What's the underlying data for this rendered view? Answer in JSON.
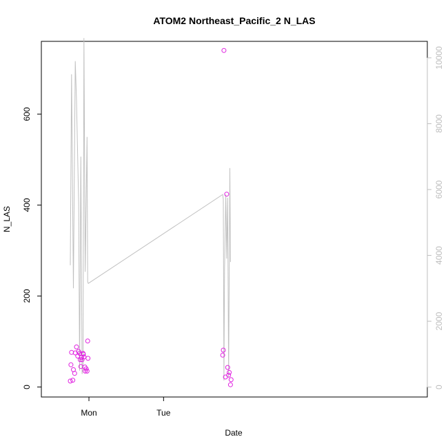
{
  "chart_data": {
    "type": "scatter",
    "title": "ATOM2 Northeast_Pacific_2 N_LAS",
    "xlabel": "Date",
    "ylabel": "N_LAS",
    "xlim_hours": [
      -15.3,
      108.8
    ],
    "ylim_left": [
      -22,
      760
    ],
    "ylim_right": [
      -300,
      10500
    ],
    "x_ticks": [
      {
        "label": "Mon",
        "hour": 0
      },
      {
        "label": "Tue",
        "hour": 24
      }
    ],
    "left_ticks": [
      0,
      200,
      400,
      600
    ],
    "right_ticks": [
      0,
      2000,
      4000,
      6000,
      8000,
      10000
    ],
    "colors": {
      "points": "#e020e0",
      "line": "#c0c0c0",
      "right_axis": "#bdbdbd"
    },
    "points": [
      {
        "x": -6.0,
        "y": 13
      },
      {
        "x": -5.8,
        "y": 49
      },
      {
        "x": -5.6,
        "y": 76
      },
      {
        "x": -5.2,
        "y": 15
      },
      {
        "x": -5.0,
        "y": 38
      },
      {
        "x": -4.6,
        "y": 30
      },
      {
        "x": -4.4,
        "y": 75
      },
      {
        "x": -4.0,
        "y": 88
      },
      {
        "x": -3.6,
        "y": 68
      },
      {
        "x": -3.3,
        "y": 78
      },
      {
        "x": -3.0,
        "y": 74
      },
      {
        "x": -2.8,
        "y": 60
      },
      {
        "x": -2.6,
        "y": 45
      },
      {
        "x": -2.4,
        "y": 65
      },
      {
        "x": -2.2,
        "y": 60
      },
      {
        "x": -1.9,
        "y": 74
      },
      {
        "x": -1.8,
        "y": 72
      },
      {
        "x": -1.6,
        "y": 66
      },
      {
        "x": -1.3,
        "y": 44
      },
      {
        "x": -1.2,
        "y": 35
      },
      {
        "x": -0.9,
        "y": 40
      },
      {
        "x": -0.6,
        "y": 35
      },
      {
        "x": -0.4,
        "y": 101
      },
      {
        "x": -0.3,
        "y": 63
      },
      {
        "x": 43.0,
        "y": 70
      },
      {
        "x": 43.2,
        "y": 81
      },
      {
        "x": 43.4,
        "y": 740
      },
      {
        "x": 43.9,
        "y": 22
      },
      {
        "x": 44.3,
        "y": 424
      },
      {
        "x": 44.6,
        "y": 43
      },
      {
        "x": 44.9,
        "y": 26
      },
      {
        "x": 45.1,
        "y": 32
      },
      {
        "x": 45.5,
        "y": 5
      },
      {
        "x": 45.7,
        "y": 16
      }
    ],
    "line": [
      {
        "x": -6.0,
        "y": 3700
      },
      {
        "x": -5.6,
        "y": 9500
      },
      {
        "x": -5.0,
        "y": 3000
      },
      {
        "x": -4.4,
        "y": 9900
      },
      {
        "x": -4.0,
        "y": 8700
      },
      {
        "x": -3.3,
        "y": 5600
      },
      {
        "x": -3.0,
        "y": 500
      },
      {
        "x": -2.6,
        "y": 7000
      },
      {
        "x": -2.2,
        "y": 400
      },
      {
        "x": -1.9,
        "y": 700
      },
      {
        "x": -1.6,
        "y": 10600
      },
      {
        "x": -1.2,
        "y": 3500
      },
      {
        "x": -0.6,
        "y": 7600
      },
      {
        "x": -0.4,
        "y": 3200
      },
      {
        "x": -0.2,
        "y": 3150
      },
      {
        "x": 43.0,
        "y": 5850
      },
      {
        "x": 43.2,
        "y": 5700
      },
      {
        "x": 43.4,
        "y": 200
      },
      {
        "x": 43.6,
        "y": 3600
      },
      {
        "x": 44.0,
        "y": 5850
      },
      {
        "x": 44.3,
        "y": 3900
      },
      {
        "x": 44.6,
        "y": 5750
      },
      {
        "x": 44.9,
        "y": 300
      },
      {
        "x": 45.3,
        "y": 6650
      },
      {
        "x": 45.5,
        "y": 3800
      }
    ]
  }
}
